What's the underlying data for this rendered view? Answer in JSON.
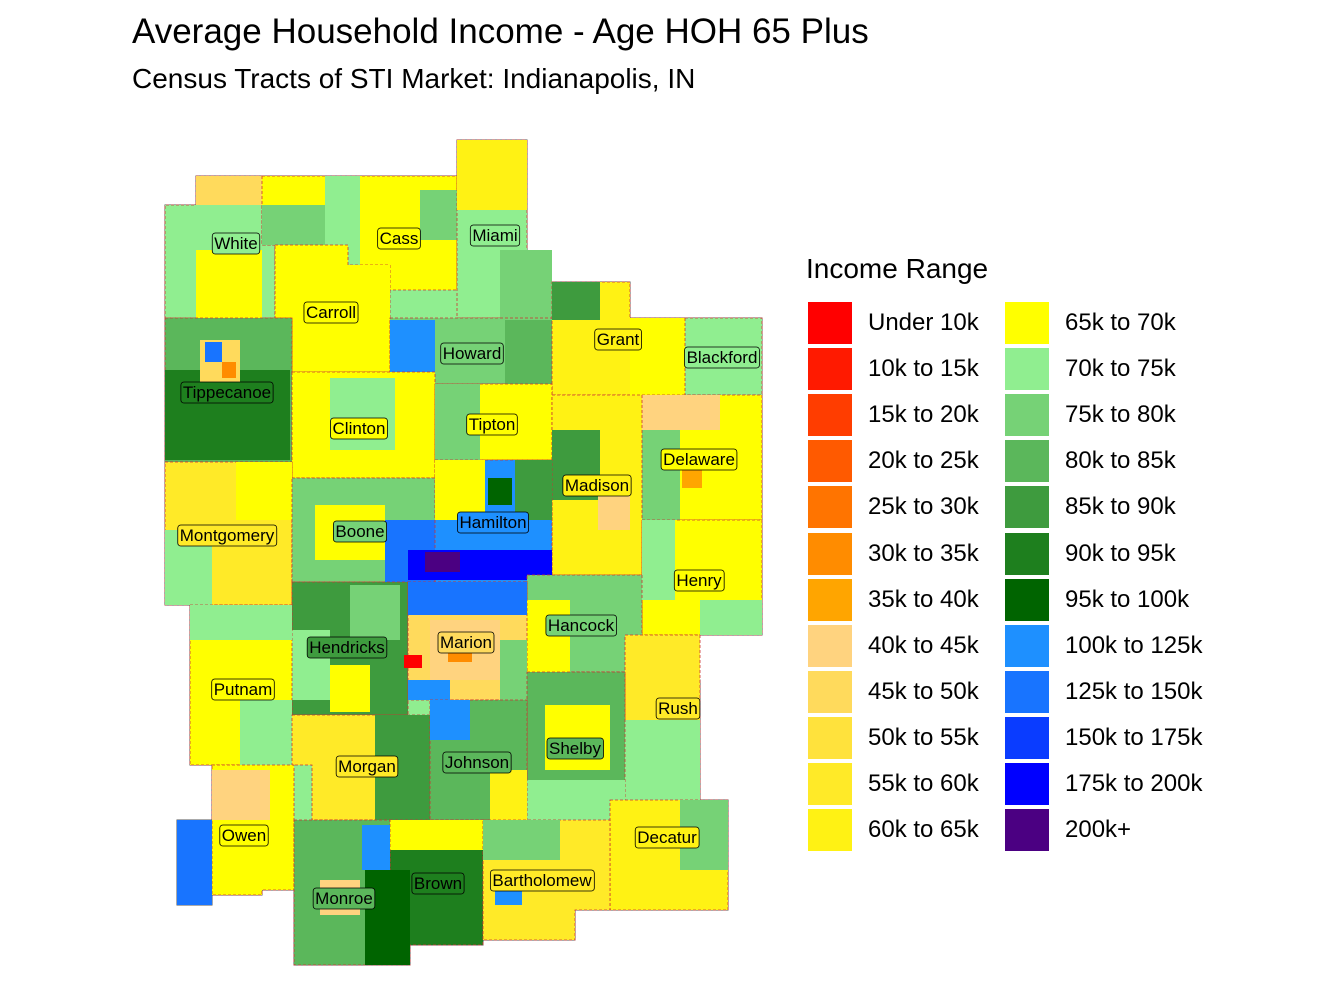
{
  "title": "Average Household Income - Age HOH 65 Plus",
  "subtitle": "Census Tracts of STI Market: Indianapolis, IN",
  "legend": {
    "title": "Income Range",
    "items": [
      {
        "label": "Under 10k",
        "color": "#FF0000"
      },
      {
        "label": "10k to 15k",
        "color": "#FF1A00"
      },
      {
        "label": "15k to 20k",
        "color": "#FF3D00"
      },
      {
        "label": "20k to 25k",
        "color": "#FF5A00"
      },
      {
        "label": "25k to 30k",
        "color": "#FF7400"
      },
      {
        "label": "30k to 35k",
        "color": "#FF8C00"
      },
      {
        "label": "35k to 40k",
        "color": "#FFA500"
      },
      {
        "label": "40k to 45k",
        "color": "#FFD37F"
      },
      {
        "label": "45k to 50k",
        "color": "#FFDA5C"
      },
      {
        "label": "50k to 55k",
        "color": "#FFE23C"
      },
      {
        "label": "55k to 60k",
        "color": "#FFEA28"
      },
      {
        "label": "60k to 65k",
        "color": "#FFF214"
      },
      {
        "label": "65k to 70k",
        "color": "#FFFF00"
      },
      {
        "label": "70k to 75k",
        "color": "#90EE90"
      },
      {
        "label": "75k to 80k",
        "color": "#76D276"
      },
      {
        "label": "80k to 85k",
        "color": "#5BB75B"
      },
      {
        "label": "85k to 90k",
        "color": "#3E9B3E"
      },
      {
        "label": "90k to 95k",
        "color": "#1E7F1E"
      },
      {
        "label": "95k to 100k",
        "color": "#006400"
      },
      {
        "label": "100k to 125k",
        "color": "#1E90FF"
      },
      {
        "label": "125k to 150k",
        "color": "#1874FF"
      },
      {
        "label": "150k to 175k",
        "color": "#0A3CFF"
      },
      {
        "label": "175k to 200k",
        "color": "#0000FF"
      },
      {
        "label": "200k+",
        "color": "#4B0082"
      }
    ]
  },
  "counties": [
    {
      "name": "White",
      "color": "#90EE90"
    },
    {
      "name": "Cass",
      "color": "#FFFF00"
    },
    {
      "name": "Miami",
      "color": "#90EE90"
    },
    {
      "name": "Carroll",
      "color": "#FFFF00"
    },
    {
      "name": "Grant",
      "color": "#FFF214"
    },
    {
      "name": "Howard",
      "color": "#76D276"
    },
    {
      "name": "Blackford",
      "color": "#90EE90"
    },
    {
      "name": "Tippecanoe",
      "color": "#1E7F1E"
    },
    {
      "name": "Clinton",
      "color": "#FFFF00"
    },
    {
      "name": "Tipton",
      "color": "#FFFF00"
    },
    {
      "name": "Delaware",
      "color": "#FFFF00"
    },
    {
      "name": "Madison",
      "color": "#FFF214"
    },
    {
      "name": "Montgomery",
      "color": "#FFEA28"
    },
    {
      "name": "Boone",
      "color": "#76D276"
    },
    {
      "name": "Hamilton",
      "color": "#1E90FF"
    },
    {
      "name": "Henry",
      "color": "#FFFF00"
    },
    {
      "name": "Hancock",
      "color": "#76D276"
    },
    {
      "name": "Hendricks",
      "color": "#3E9B3E"
    },
    {
      "name": "Marion",
      "color": "#FFDA5C"
    },
    {
      "name": "Putnam",
      "color": "#FFFF00"
    },
    {
      "name": "Rush",
      "color": "#FFEA28"
    },
    {
      "name": "Shelby",
      "color": "#5BB75B"
    },
    {
      "name": "Morgan",
      "color": "#FFEA28"
    },
    {
      "name": "Johnson",
      "color": "#5BB75B"
    },
    {
      "name": "Owen",
      "color": "#FFFF00"
    },
    {
      "name": "Decatur",
      "color": "#FFF214"
    },
    {
      "name": "Brown",
      "color": "#1E7F1E"
    },
    {
      "name": "Bartholomew",
      "color": "#FFEA28"
    },
    {
      "name": "Monroe",
      "color": "#5BB75B"
    }
  ]
}
